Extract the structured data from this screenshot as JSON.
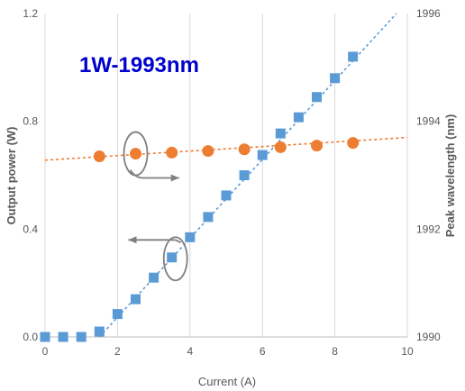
{
  "chart_data": {
    "type": "scatter",
    "annotation": "1W-1993nm",
    "xlabel": "Current (A)",
    "ylabel_left": "Output power (W)",
    "ylabel_right": "Peak wavelength (nm)",
    "xlim": [
      0,
      10
    ],
    "ylim_left": [
      0,
      1.2
    ],
    "ylim_right": [
      1990,
      1996
    ],
    "x_ticks": [
      "0",
      "2",
      "4",
      "6",
      "8",
      "10"
    ],
    "y_left_ticks": [
      "0.0",
      "0.4",
      "0.8",
      "1.2"
    ],
    "y_right_ticks": [
      "1990",
      "1992",
      "1994",
      "1996"
    ],
    "grid": "vertical",
    "series": [
      {
        "axis": "left",
        "marker": "square",
        "color": "#5b9bd5",
        "x": [
          0,
          0.5,
          1.0,
          1.5,
          2.0,
          2.5,
          3.0,
          3.5,
          4.0,
          4.5,
          5.0,
          5.5,
          6.0,
          6.5,
          7.0,
          7.5,
          8.0,
          8.5
        ],
        "y": [
          0.0,
          0.0,
          0.0,
          0.02,
          0.085,
          0.14,
          0.22,
          0.295,
          0.37,
          0.445,
          0.525,
          0.6,
          0.675,
          0.755,
          0.815,
          0.89,
          0.96,
          1.04
        ],
        "trendline": {
          "x": [
            1.5,
            9.7
          ],
          "y": [
            0.0,
            1.2
          ]
        }
      },
      {
        "axis": "right",
        "marker": "circle",
        "color": "#ed7d31",
        "x": [
          1.5,
          2.5,
          3.5,
          4.5,
          5.5,
          6.5,
          7.5,
          8.5
        ],
        "y": [
          1993.35,
          1993.4,
          1993.42,
          1993.45,
          1993.48,
          1993.52,
          1993.55,
          1993.6
        ],
        "trendline": {
          "x": [
            0,
            10
          ],
          "y": [
            1993.28,
            1993.7
          ]
        }
      }
    ],
    "indicators": [
      {
        "axis": "right",
        "direction": "right",
        "color": "#7f7f7f",
        "ellipse_center": [
          2.5,
          1993.4
        ],
        "arrow_x": [
          2.7,
          3.7
        ],
        "arrow_y": 1992.95
      },
      {
        "axis": "left",
        "direction": "left",
        "color": "#7f7f7f",
        "ellipse_center": [
          3.6,
          0.29
        ],
        "arrow_x": [
          3.6,
          2.3
        ],
        "arrow_y": 0.36
      }
    ]
  }
}
